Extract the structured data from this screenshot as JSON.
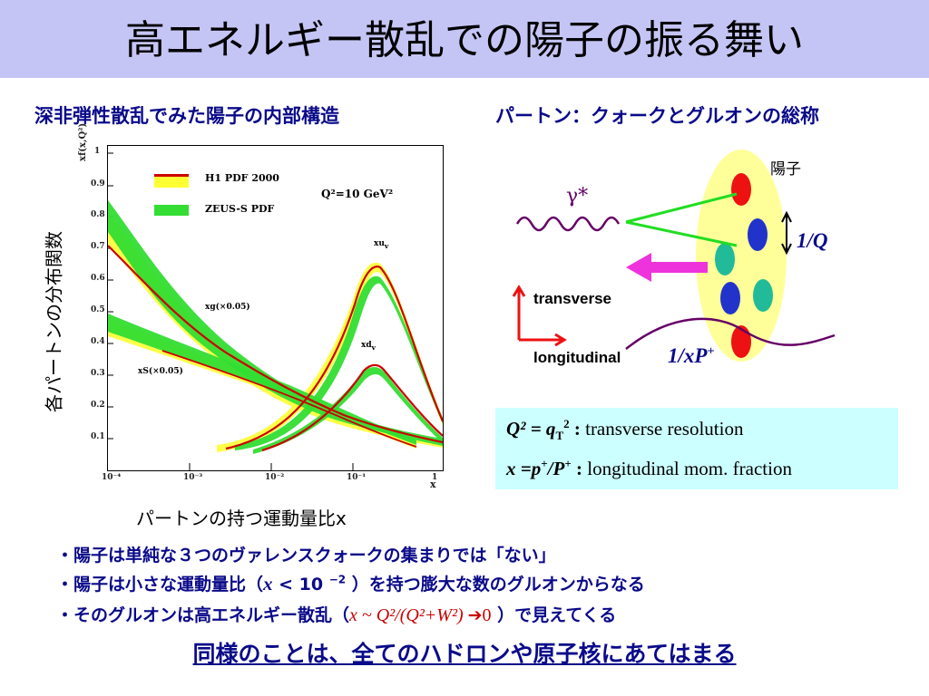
{
  "title": "高エネルギー散乱での陽子の振る舞い",
  "left_heading": "深非弾性散乱でみた陽子の内部構造",
  "right_heading": "パートン：クォークとグルオンの総称",
  "plot": {
    "y_axis_title": "各パートンの分布関数",
    "x_axis_caption": "パートンの持つ運動量比x",
    "ylabel_small": "xf(x,Q²)",
    "xlabel_small": "x",
    "y_ticks": [
      "1",
      "0.9",
      "0.8",
      "0.7",
      "0.6",
      "0.5",
      "0.4",
      "0.3",
      "0.2",
      "0.1"
    ],
    "x_ticks": [
      "10⁻⁴",
      "10⁻³",
      "10⁻²",
      "10⁻¹",
      "1"
    ],
    "legend": [
      "H1 PDF 2000",
      "ZEUS-S PDF"
    ],
    "q2_label": "Q²=10 GeV²",
    "curve_labels": {
      "xuv": "xu",
      "xuv_sub": "v",
      "xdv": "xd",
      "xdv_sub": "v",
      "xg": "xg(×0.05)",
      "xs": "xS(×0.05)"
    },
    "colors": {
      "h1": "#ffff33",
      "zeus": "#33dd33",
      "center": "#cc0000"
    }
  },
  "diagram": {
    "proton_label": "陽子",
    "photon_label": "γ*",
    "scale_label": "1/Q",
    "transverse_label": "transverse",
    "longitudinal_label": "longitudinal",
    "xp_label": "1/xP",
    "xp_sup": "+",
    "colors": {
      "proton": "#ffff99",
      "red_parton": "#ee1111",
      "blue_parton": "#2233cc",
      "teal_parton": "#22bb99",
      "arrow": "#ee33dd",
      "wave": "#660066"
    }
  },
  "formula": {
    "line1_lhs": "Q² = q",
    "line1_sub": "T",
    "line1_sup": "2",
    "line1_sep": " : ",
    "line1_rhs": "transverse resolution",
    "line2_lhs": "x =p",
    "line2_sup1": "+",
    "line2_mid": "/P",
    "line2_sup2": "+",
    "line2_sep": " : ",
    "line2_rhs": "longitudinal mom. fraction"
  },
  "bullets": {
    "b1": "・陽子は単純な３つのヴァレンスクォークの集まりでは「ない」",
    "b2_a": "・陽子は小さな運動量比（",
    "b2_x": "x",
    "b2_b": " < 10 ",
    "b2_sup": "−2",
    "b2_c": " ）を持つ膨大な数のグルオンからなる",
    "b3_a": "・そのグルオンは高エネルギー散乱（",
    "b3_expr": "x ~ Q²/(Q²+W²) ",
    "b3_arrow": "➔",
    "b3_zero": "0",
    "b3_b": " ）で見えてくる"
  },
  "conclusion": "同様のことは、全てのハドロンや原子核にあてはまる"
}
